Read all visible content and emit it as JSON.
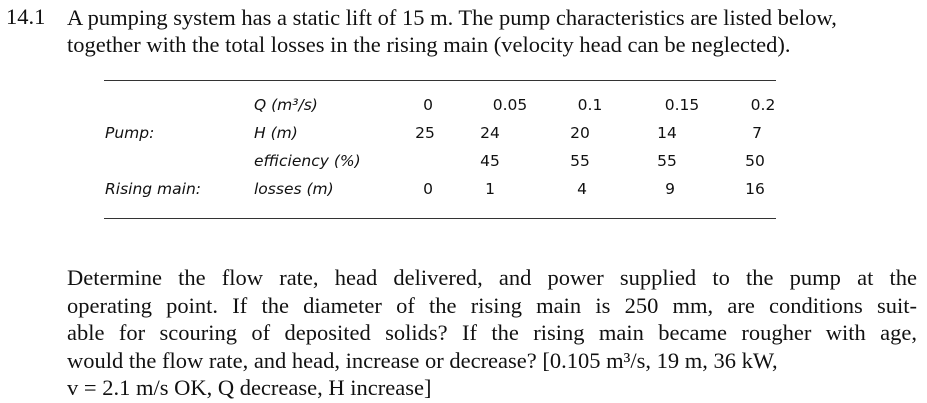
{
  "problem": {
    "number": "14.1",
    "intro_lines": [
      "A pumping system has a static lift of 15 m. The pump characteristics are listed below,",
      "together with the total losses in the rising main (velocity head can be neglected)."
    ]
  },
  "table": {
    "row_labels": {
      "pump": "Pump:",
      "rising_main": "Rising main:"
    },
    "quantity_labels": {
      "q": "Q (m³/s)",
      "h": "H (m)",
      "eff": "efficiency (%)",
      "losses": "losses (m)"
    },
    "columns": [
      {
        "q": "0",
        "h": "25",
        "eff": "",
        "losses": "0"
      },
      {
        "q": "0.05",
        "h": "24",
        "eff": "45",
        "losses": "1"
      },
      {
        "q": "0.1",
        "h": "20",
        "eff": "55",
        "losses": "4"
      },
      {
        "q": "0.15",
        "h": "14",
        "eff": "55",
        "losses": "9"
      },
      {
        "q": "0.2",
        "h": "7",
        "eff": "50",
        "losses": "16"
      }
    ]
  },
  "question": {
    "lines": [
      "Determine the flow rate, head delivered, and power supplied to the pump at the",
      "operating point. If the diameter of the rising main is 250 mm, are conditions suit-",
      "able for scouring of deposited solids? If the rising main became rougher with age,",
      "would the flow rate, and head, increase or decrease?  [0.105 m³/s, 19 m, 36 kW,",
      "v = 2.1 m/s OK, Q decrease, H increase]"
    ]
  }
}
